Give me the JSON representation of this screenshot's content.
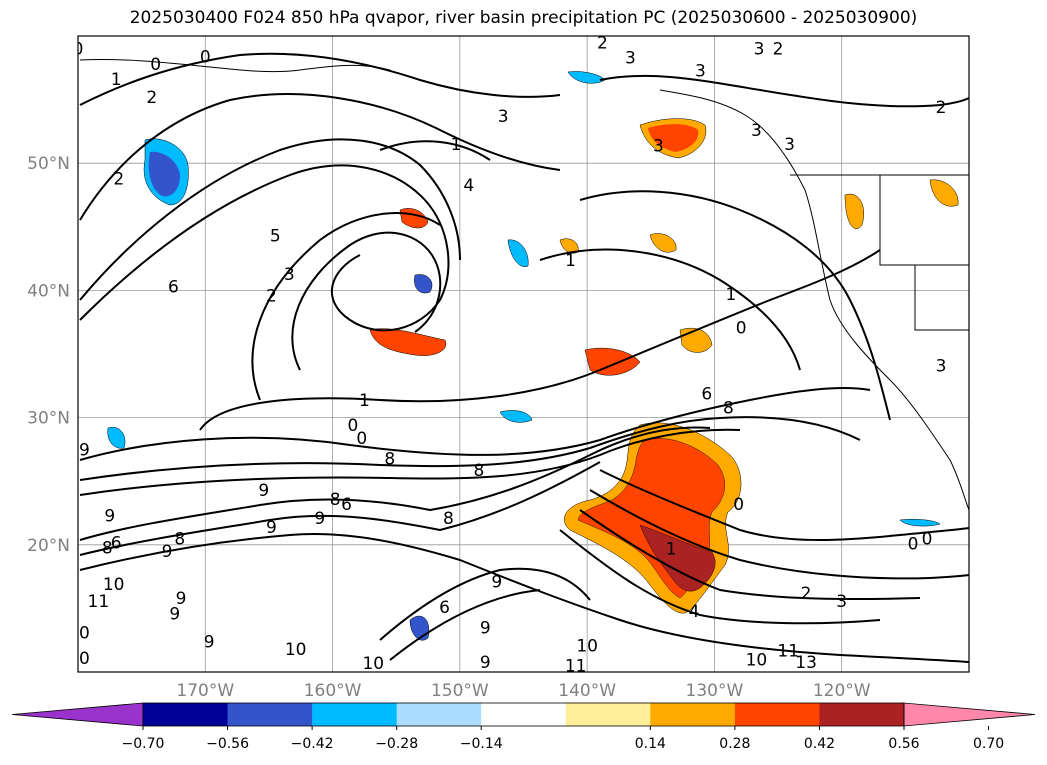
{
  "title": "2025030400 F024 850 hPa qvapor, river basin precipitation PC (2025030600 - 2025030900)",
  "lat_labels": [
    {
      "label": "50°N",
      "lat": 50
    },
    {
      "label": "40°N",
      "lat": 40
    },
    {
      "label": "30°N",
      "lat": 30
    },
    {
      "label": "20°N",
      "lat": 20
    }
  ],
  "lon_labels": [
    {
      "label": "170°W",
      "lon": -170
    },
    {
      "label": "160°W",
      "lon": -160
    },
    {
      "label": "150°W",
      "lon": -150
    },
    {
      "label": "140°W",
      "lon": -140
    },
    {
      "label": "130°W",
      "lon": -130
    },
    {
      "label": "120°W",
      "lon": -120
    }
  ],
  "map_extent": {
    "lon_min": -180,
    "lon_max": -110,
    "lat_min": 10,
    "lat_max": 60
  },
  "colorbar": {
    "ticks": [
      "−0.70",
      "−0.56",
      "−0.42",
      "−0.28",
      "−0.14",
      "0.14",
      "0.28",
      "0.42",
      "0.56",
      "0.70"
    ],
    "colors": [
      "#9933cc",
      "#000099",
      "#3355cc",
      "#00bbff",
      "#aaddff",
      "#ffffff",
      "#ffee99",
      "#ffaa00",
      "#ff4400",
      "#aa2222",
      "#ff88aa"
    ],
    "extend": "both"
  },
  "contour_labels": [
    {
      "text": "0",
      "lon": -180,
      "lat": 59
    },
    {
      "text": "1",
      "lon": -177,
      "lat": 56.6
    },
    {
      "text": "0",
      "lon": -173.9,
      "lat": 57.8
    },
    {
      "text": "2",
      "lon": -174.2,
      "lat": 55.2
    },
    {
      "text": "0",
      "lon": -170,
      "lat": 58.4
    },
    {
      "text": "2",
      "lon": -176.8,
      "lat": 48.8
    },
    {
      "text": "3",
      "lon": -146.6,
      "lat": 53.7
    },
    {
      "text": "3",
      "lon": -136.6,
      "lat": 58.3
    },
    {
      "text": "3",
      "lon": -131.1,
      "lat": 57.3
    },
    {
      "text": "3",
      "lon": -126.5,
      "lat": 59
    },
    {
      "text": "2",
      "lon": -125,
      "lat": 59
    },
    {
      "text": "2",
      "lon": -138.8,
      "lat": 59.5
    },
    {
      "text": "3",
      "lon": -126.7,
      "lat": 52.6
    },
    {
      "text": "3",
      "lon": -124.1,
      "lat": 51.5
    },
    {
      "text": "2",
      "lon": -112.2,
      "lat": 54.4
    },
    {
      "text": "3",
      "lon": -134.4,
      "lat": 51.4
    },
    {
      "text": "1",
      "lon": -150.3,
      "lat": 51.5
    },
    {
      "text": "4",
      "lon": -149.3,
      "lat": 48.3
    },
    {
      "text": "5",
      "lon": -164.5,
      "lat": 44.3
    },
    {
      "text": "6",
      "lon": -172.5,
      "lat": 40.3
    },
    {
      "text": "2",
      "lon": -164.8,
      "lat": 39.6
    },
    {
      "text": "3",
      "lon": -163.4,
      "lat": 41.3
    },
    {
      "text": "1",
      "lon": -141.3,
      "lat": 42.4
    },
    {
      "text": "1",
      "lon": -128.7,
      "lat": 39.7
    },
    {
      "text": "0",
      "lon": -127.9,
      "lat": 37.1
    },
    {
      "text": "1",
      "lon": -157.5,
      "lat": 31.4
    },
    {
      "text": "0",
      "lon": -157.7,
      "lat": 28.4
    },
    {
      "text": "0",
      "lon": -158.4,
      "lat": 29.4
    },
    {
      "text": "6",
      "lon": -130.6,
      "lat": 31.9
    },
    {
      "text": "8",
      "lon": -128.9,
      "lat": 30.8
    },
    {
      "text": "3",
      "lon": -112.2,
      "lat": 34.1
    },
    {
      "text": "9",
      "lon": -179.5,
      "lat": 27.5
    },
    {
      "text": "8",
      "lon": -155.5,
      "lat": 26.8
    },
    {
      "text": "8",
      "lon": -148.5,
      "lat": 25.9
    },
    {
      "text": "9",
      "lon": -165.4,
      "lat": 24.3
    },
    {
      "text": "8",
      "lon": -159.8,
      "lat": 23.6
    },
    {
      "text": "6",
      "lon": -158.9,
      "lat": 23.2
    },
    {
      "text": "9",
      "lon": -164.8,
      "lat": 21.4
    },
    {
      "text": "9",
      "lon": -161,
      "lat": 22.1
    },
    {
      "text": "8",
      "lon": -172,
      "lat": 20.5
    },
    {
      "text": "9",
      "lon": -177.5,
      "lat": 22.3
    },
    {
      "text": "6",
      "lon": -177,
      "lat": 20.2
    },
    {
      "text": "8",
      "lon": -177.7,
      "lat": 19.8
    },
    {
      "text": "9",
      "lon": -173,
      "lat": 19.5
    },
    {
      "text": "8",
      "lon": -150.9,
      "lat": 22.1
    },
    {
      "text": "0",
      "lon": -128.1,
      "lat": 23.2
    },
    {
      "text": "0",
      "lon": -114.4,
      "lat": 20.1
    },
    {
      "text": "0",
      "lon": -113.3,
      "lat": 20.5
    },
    {
      "text": "1",
      "lon": -133.4,
      "lat": 19.7
    },
    {
      "text": "2",
      "lon": -122.8,
      "lat": 16.2
    },
    {
      "text": "3",
      "lon": -120,
      "lat": 15.6
    },
    {
      "text": "4",
      "lon": -131.6,
      "lat": 14.8
    },
    {
      "text": "10",
      "lon": -177.2,
      "lat": 16.9
    },
    {
      "text": "11",
      "lon": -178.4,
      "lat": 15.6
    },
    {
      "text": "9",
      "lon": -171.9,
      "lat": 15.8
    },
    {
      "text": "9",
      "lon": -172.4,
      "lat": 14.6
    },
    {
      "text": "9",
      "lon": -169.7,
      "lat": 12.4
    },
    {
      "text": "10",
      "lon": -162.9,
      "lat": 11.8
    },
    {
      "text": "10",
      "lon": -156.8,
      "lat": 10.7
    },
    {
      "text": "9",
      "lon": -148,
      "lat": 13.5
    },
    {
      "text": "9",
      "lon": -148,
      "lat": 10.8
    },
    {
      "text": "10",
      "lon": -140,
      "lat": 12.1
    },
    {
      "text": "11",
      "lon": -140.9,
      "lat": 10.5
    },
    {
      "text": "10",
      "lon": -126.7,
      "lat": 11
    },
    {
      "text": "11",
      "lon": -124.2,
      "lat": 11.7
    },
    {
      "text": "13",
      "lon": -122.8,
      "lat": 10.8
    },
    {
      "text": "6",
      "lon": -151.2,
      "lat": 15.1
    },
    {
      "text": "9",
      "lon": -147.1,
      "lat": 17.1
    },
    {
      "text": "0",
      "lon": -179.5,
      "lat": 13.1
    },
    {
      "text": "0",
      "lon": -179.5,
      "lat": 11.1
    }
  ]
}
